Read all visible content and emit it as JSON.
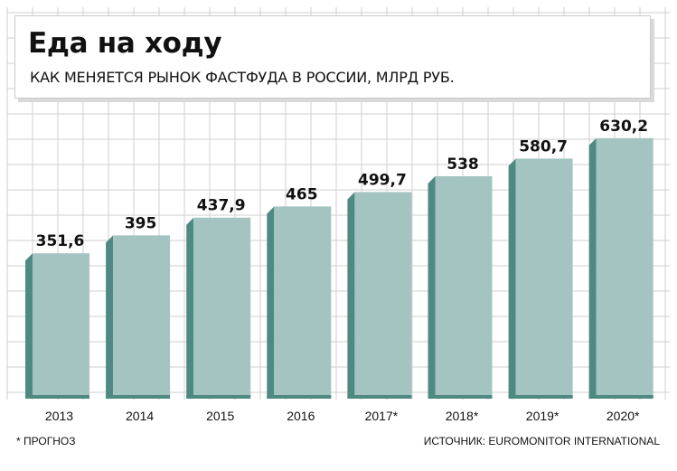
{
  "header": {
    "title": "Еда на ходу",
    "subtitle": "КАК МЕНЯЕТСЯ РЫНОК ФАСТФУДА В РОССИИ, МЛРД РУБ."
  },
  "footer": {
    "note": "* ПРОГНОЗ",
    "source": "ИСТОЧНИК: EUROMONITOR INTERNATIONAL"
  },
  "colors": {
    "bar_front": "#a3c4c1",
    "bar_side": "#4f8a82",
    "grid": "#cfcfcf",
    "text": "#111111"
  },
  "chart_data": {
    "type": "bar",
    "title": "Еда на ходу",
    "subtitle": "КАК МЕНЯЕТСЯ РЫНОК ФАСТФУДА В РОССИИ, МЛРД РУБ.",
    "categories": [
      "2013",
      "2014",
      "2015",
      "2016",
      "2017*",
      "2018*",
      "2019*",
      "2020*"
    ],
    "values": [
      351.6,
      395,
      437.9,
      465,
      499.7,
      538,
      580.7,
      630.2
    ],
    "value_labels": [
      "351,6",
      "395",
      "437,9",
      "465",
      "499,7",
      "538",
      "580,7",
      "630,2"
    ],
    "xlabel": "",
    "ylabel": "",
    "grid": true,
    "legend": "none",
    "ylim": [
      0,
      700
    ]
  }
}
